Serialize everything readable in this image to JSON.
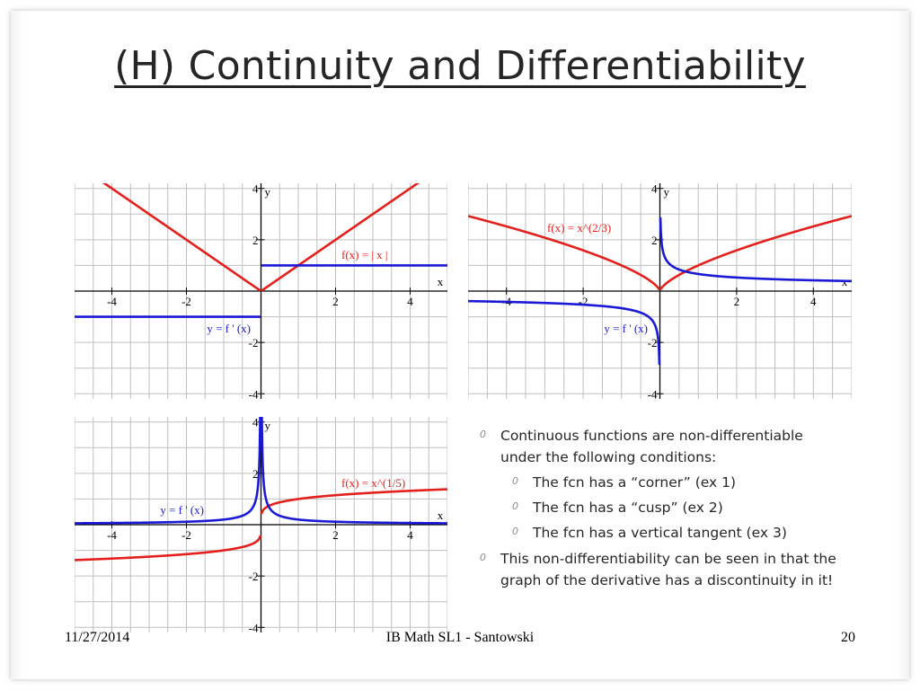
{
  "slide": {
    "title": "(H) Continuity and Differentiability",
    "footer_date": "11/27/2014",
    "footer_center": "IB Math SL1 - Santowski",
    "page_number": "20",
    "bullet_marker": "0",
    "bullets": [
      {
        "level": 1,
        "text": "Continuous functions are non-differentiable under the following conditions:"
      },
      {
        "level": 2,
        "text": "The fcn has a “corner” (ex 1)"
      },
      {
        "level": 2,
        "text": "The fcn has a “cusp” (ex 2)"
      },
      {
        "level": 2,
        "text": "The fcn has a vertical tangent  (ex 3)"
      },
      {
        "level": 1,
        "text": "This non-differentiability can be seen in that the graph of the derivative has a discontinuity in it!"
      }
    ]
  },
  "colors": {
    "function": "#e3201b",
    "derivative": "#1a1ad6",
    "grid": "#bfbfbf",
    "axis": "#000000"
  },
  "chart_data": [
    {
      "type": "line",
      "xlim": [
        -5,
        5
      ],
      "ylim": [
        -4.2,
        4.2
      ],
      "xticks": [
        "-4",
        "-2",
        "2",
        "4"
      ],
      "yticks": [
        "4",
        "2",
        "-2",
        "-4"
      ],
      "xlabel": "x",
      "ylabel": "y",
      "grid": true,
      "series": [
        {
          "name": "f(x) = | x |",
          "role": "function",
          "fn": "abs"
        },
        {
          "name": "y = f ' (x)",
          "role": "derivative",
          "fn": "sign"
        }
      ]
    },
    {
      "type": "line",
      "xlim": [
        -5,
        5
      ],
      "ylim": [
        -4.2,
        4.2
      ],
      "xticks": [
        "-4",
        "-2",
        "2",
        "4"
      ],
      "yticks": [
        "4",
        "2",
        "-2",
        "-4"
      ],
      "xlabel": "x",
      "ylabel": "y",
      "grid": true,
      "series": [
        {
          "name": "f(x) = x^(2/3)",
          "role": "function",
          "fn": "pow23"
        },
        {
          "name": "y = f ' (x)",
          "role": "derivative",
          "fn": "dpow23"
        }
      ]
    },
    {
      "type": "line",
      "xlim": [
        -5,
        5
      ],
      "ylim": [
        -4.2,
        4.2
      ],
      "xticks": [
        "-4",
        "-2",
        "2",
        "4"
      ],
      "yticks": [
        "4",
        "2",
        "-2",
        "-4"
      ],
      "xlabel": "x",
      "ylabel": "y",
      "grid": true,
      "series": [
        {
          "name": "f(x) = x^(1/5)",
          "role": "function",
          "fn": "pow15"
        },
        {
          "name": "y = f ' (x)",
          "role": "derivative",
          "fn": "dpow15"
        }
      ]
    }
  ]
}
